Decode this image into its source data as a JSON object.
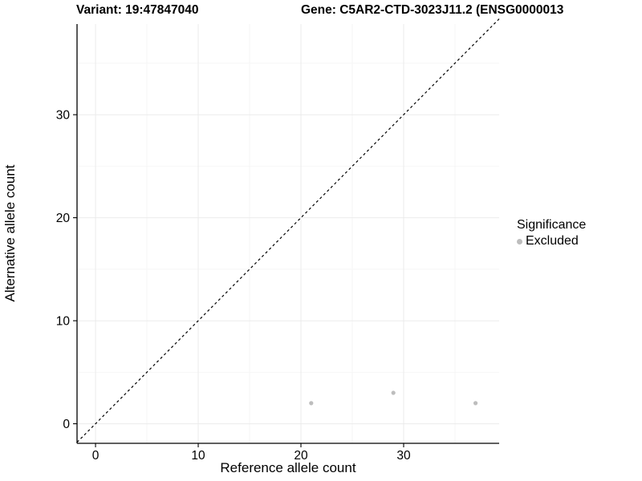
{
  "header": {
    "variant_title": "Variant: 19:47847040",
    "gene_title": "Gene: C5AR2-CTD-3023J11.2 (ENSG0000013"
  },
  "chart_data": {
    "type": "scatter",
    "xlabel": "Reference allele count",
    "ylabel": "Alternative allele count",
    "x_ticks": [
      0,
      10,
      20,
      30
    ],
    "y_ticks": [
      0,
      10,
      20,
      30
    ],
    "x_minor_ticks": [
      5,
      15,
      25,
      35
    ],
    "y_minor_ticks": [
      5,
      15,
      25,
      35
    ],
    "xlim": [
      -1.8,
      39.3
    ],
    "ylim": [
      -1.9,
      38.8
    ],
    "identity_line": {
      "style": "dashed",
      "color": "#000000",
      "equation": "y = x"
    },
    "grid": {
      "major": true,
      "minor": true
    },
    "series": [
      {
        "name": "Excluded",
        "color": "#bdbdbd",
        "points": [
          {
            "x": 21,
            "y": 2
          },
          {
            "x": 29,
            "y": 3
          },
          {
            "x": 37,
            "y": 2
          }
        ]
      }
    ],
    "legend": {
      "position": "right",
      "title": "Significance",
      "entries": [
        {
          "label": "Excluded",
          "color": "#bdbdbd"
        }
      ]
    },
    "colors": {
      "axis_line": "#000000",
      "tick": "#000000",
      "grid_major": "#ebebeb",
      "grid_minor": "#f5f5f5",
      "point": "#bdbdbd",
      "background": "#ffffff"
    }
  }
}
